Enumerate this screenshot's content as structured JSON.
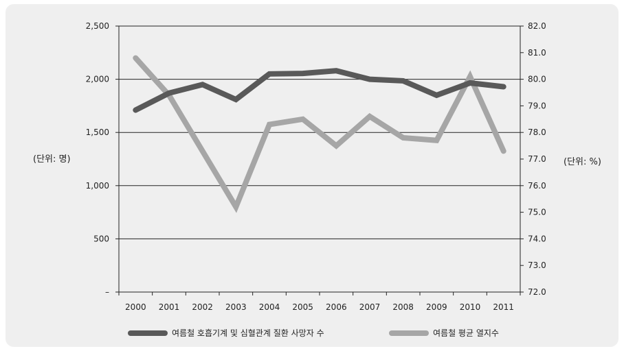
{
  "chart_data": {
    "type": "line",
    "categories": [
      "2000",
      "2001",
      "2002",
      "2003",
      "2004",
      "2005",
      "2006",
      "2007",
      "2008",
      "2009",
      "2010",
      "2011"
    ],
    "left_axis": {
      "unit_label": "(단위: 명)",
      "ylim": [
        0,
        2500
      ],
      "ticks": [
        0,
        500,
        1000,
        1500,
        2000,
        2500
      ],
      "tick_labels": [
        "–",
        "500",
        "1,000",
        "1,500",
        "2,000",
        "2,500"
      ]
    },
    "right_axis": {
      "unit_label": "(단위: %)",
      "ylim": [
        72.0,
        82.0
      ],
      "ticks": [
        72.0,
        73.0,
        74.0,
        75.0,
        76.0,
        77.0,
        78.0,
        79.0,
        80.0,
        81.0,
        82.0
      ],
      "tick_labels": [
        "72.0",
        "73.0",
        "74.0",
        "75.0",
        "76.0",
        "77.0",
        "78.0",
        "79.0",
        "80.0",
        "81.0",
        "82.0"
      ]
    },
    "series": [
      {
        "name": "여름철 호흡기계 및 심혈관계 질환 사망자 수",
        "axis": "left",
        "color": "#595959",
        "values": [
          1710,
          1870,
          1950,
          1810,
          2050,
          2055,
          2080,
          2000,
          1985,
          1850,
          1965,
          1930
        ]
      },
      {
        "name": "여름철 평균 열지수",
        "axis": "right",
        "color": "#a6a6a6",
        "values": [
          80.8,
          79.4,
          77.3,
          75.2,
          78.3,
          78.5,
          77.5,
          78.6,
          77.8,
          77.7,
          80.1,
          77.3
        ]
      }
    ],
    "grid": "horizontal",
    "legend_position": "bottom"
  }
}
